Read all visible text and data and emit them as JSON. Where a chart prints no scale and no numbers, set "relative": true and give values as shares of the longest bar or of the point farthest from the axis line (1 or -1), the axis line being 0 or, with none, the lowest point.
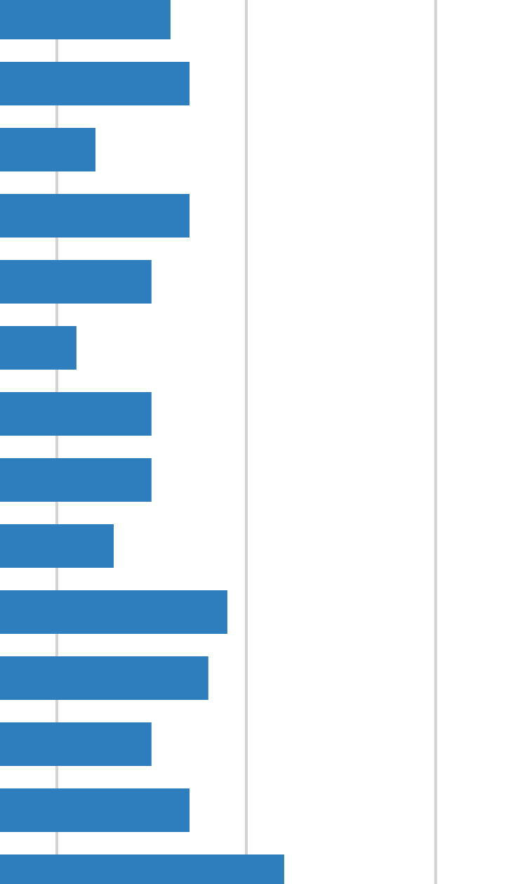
{
  "chart_data": {
    "type": "bar",
    "orientation": "horizontal",
    "relative": true,
    "categories": [
      null,
      null,
      null,
      null,
      null,
      null,
      null,
      null,
      null,
      null,
      null,
      null,
      null,
      null
    ],
    "values": [
      0.6,
      0.667,
      0.336,
      0.667,
      0.533,
      0.269,
      0.533,
      0.533,
      0.4,
      0.8,
      0.733,
      0.533,
      0.667,
      1
    ],
    "color": "#2e7dbd",
    "ref_lines": [
      {
        "axis": "x",
        "value": 0.2,
        "color": "#d3d3d3"
      },
      {
        "axis": "x",
        "value": 0.867,
        "color": "#d3d3d3"
      },
      {
        "axis": "x",
        "value": 1.533,
        "color": "#d3d3d3"
      }
    ]
  }
}
